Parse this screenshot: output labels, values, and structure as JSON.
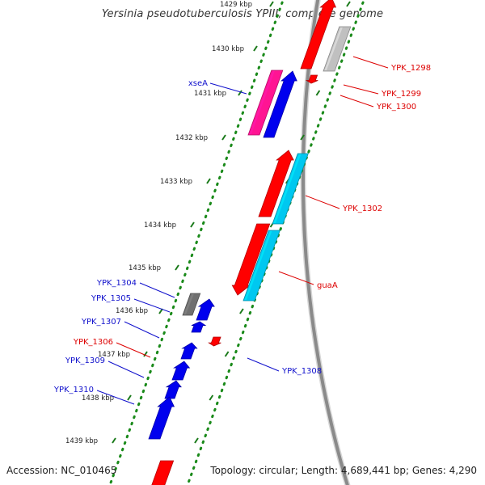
{
  "title": "Yersinia pseudotuberculosis YPIII, complete genome",
  "accession": "Accession: NC_010465",
  "summary": "Topology: circular; Length: 4,689,441 bp; Genes: 4,290",
  "colors": {
    "backbone": "#8a8a8a",
    "dots": "#1a8a1a",
    "ticks": "#1a7a1a",
    "red": "#ff0000",
    "blue": "#0000ee",
    "cyan": "#00c8f0",
    "pink": "#ff1493",
    "gray": "#707070",
    "lightgray": "#c0c0c0",
    "label_red": "#dd0000",
    "label_blue": "#1010cc"
  },
  "ticks": [
    {
      "label": "1429 kbp"
    },
    {
      "label": "1430 kbp"
    },
    {
      "label": "1431 kbp"
    },
    {
      "label": "1432 kbp"
    },
    {
      "label": "1433 kbp"
    },
    {
      "label": "1434 kbp"
    },
    {
      "label": "1435 kbp"
    },
    {
      "label": "1436 kbp"
    },
    {
      "label": "1437 kbp"
    },
    {
      "label": "1438 kbp"
    },
    {
      "label": "1439 kbp"
    }
  ],
  "features": [
    {
      "name": "gene-red-top",
      "color": "red"
    },
    {
      "name": "gene-lightgray-top",
      "color": "lightgray"
    },
    {
      "name": "gene-red-small",
      "color": "red"
    },
    {
      "name": "gene-xseA",
      "color": "pink"
    },
    {
      "name": "gene-blue-xse",
      "color": "blue"
    },
    {
      "name": "gene-red-1302",
      "color": "red"
    },
    {
      "name": "gene-cyan-1302",
      "color": "cyan"
    },
    {
      "name": "gene-guaA",
      "color": "red"
    },
    {
      "name": "gene-cyan-guaA",
      "color": "cyan"
    },
    {
      "name": "gene-YPK_1304",
      "color": "gray"
    },
    {
      "name": "gene-YPK_1305",
      "color": "blue"
    },
    {
      "name": "gene-YPK_1307",
      "color": "blue"
    },
    {
      "name": "gene-YPK_1306",
      "color": "red"
    },
    {
      "name": "gene-YPK_1308",
      "color": "blue"
    },
    {
      "name": "gene-YPK_1309",
      "color": "blue"
    },
    {
      "name": "gene-YPK_1310a",
      "color": "blue"
    },
    {
      "name": "gene-YPK_1310b",
      "color": "blue"
    },
    {
      "name": "gene-red-bottom",
      "color": "red"
    }
  ],
  "labels": [
    {
      "text": "YPK_1298",
      "color": "label_red"
    },
    {
      "text": "YPK_1299",
      "color": "label_red"
    },
    {
      "text": "YPK_1300",
      "color": "label_red"
    },
    {
      "text": "xseA",
      "color": "label_blue"
    },
    {
      "text": "YPK_1302",
      "color": "label_red"
    },
    {
      "text": "guaA",
      "color": "label_red"
    },
    {
      "text": "YPK_1304",
      "color": "label_blue"
    },
    {
      "text": "YPK_1305",
      "color": "label_blue"
    },
    {
      "text": "YPK_1307",
      "color": "label_blue"
    },
    {
      "text": "YPK_1306",
      "color": "label_red"
    },
    {
      "text": "YPK_1308",
      "color": "label_blue"
    },
    {
      "text": "YPK_1309",
      "color": "label_blue"
    },
    {
      "text": "YPK_1310",
      "color": "label_blue"
    }
  ]
}
